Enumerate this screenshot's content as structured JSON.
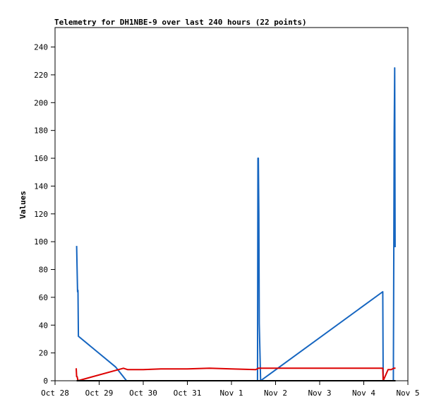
{
  "chart_data": {
    "type": "line",
    "title": "Telemetry for DH1NBE-9 over last 240 hours (22 points)",
    "xlabel": "",
    "ylabel": "Values",
    "x_ticks": [
      "Oct 28",
      "Oct 29",
      "Oct 30",
      "Oct 31",
      "Nov 1",
      "Nov 2",
      "Nov 3",
      "Nov 4",
      "Nov 5"
    ],
    "xlim": [
      0,
      8
    ],
    "y_ticks": [
      "0",
      "20",
      "40",
      "60",
      "80",
      "100",
      "120",
      "140",
      "160",
      "180",
      "200",
      "220",
      "240"
    ],
    "ylim": [
      0,
      254
    ],
    "grid": false,
    "series": [
      {
        "color": "#1565c0",
        "points": [
          [
            0.49,
            97
          ],
          [
            0.51,
            64
          ],
          [
            0.52,
            65
          ],
          [
            0.53,
            32
          ],
          [
            1.37,
            10
          ],
          [
            1.62,
            0
          ],
          [
            4.59,
            0
          ],
          [
            4.6,
            160
          ],
          [
            4.61,
            160
          ],
          [
            4.62,
            120
          ],
          [
            4.63,
            41
          ],
          [
            4.66,
            0
          ],
          [
            7.43,
            64
          ],
          [
            7.44,
            0
          ],
          [
            7.67,
            0
          ],
          [
            7.68,
            88
          ],
          [
            7.69,
            178
          ],
          [
            7.7,
            225
          ],
          [
            7.71,
            96
          ]
        ]
      },
      {
        "color": "#dd0000",
        "points": [
          [
            0.48,
            9
          ],
          [
            0.49,
            3
          ],
          [
            0.5,
            3
          ],
          [
            0.52,
            0
          ],
          [
            1.55,
            9
          ],
          [
            1.65,
            8
          ],
          [
            2.0,
            8
          ],
          [
            2.4,
            8.5
          ],
          [
            3.0,
            8.5
          ],
          [
            3.5,
            9
          ],
          [
            4.0,
            8.5
          ],
          [
            4.55,
            8
          ],
          [
            4.61,
            9
          ],
          [
            4.7,
            9
          ],
          [
            5.5,
            9
          ],
          [
            6.5,
            9
          ],
          [
            7.43,
            9
          ],
          [
            7.44,
            0
          ],
          [
            7.55,
            8
          ],
          [
            7.62,
            8
          ],
          [
            7.68,
            9
          ],
          [
            7.72,
            9
          ]
        ]
      },
      {
        "color": "#000000",
        "points": [
          [
            0.49,
            0
          ],
          [
            7.72,
            0
          ]
        ]
      }
    ]
  }
}
